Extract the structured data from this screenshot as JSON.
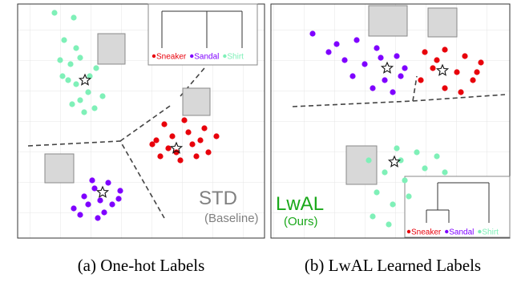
{
  "chart_data": [
    {
      "type": "scatter",
      "caption": "(a) One-hot Labels",
      "annotations": [
        "STD",
        "(Baseline)"
      ],
      "annotation_color": "#808080",
      "xlim": [
        0,
        308
      ],
      "ylim": [
        0,
        292
      ],
      "series": [
        {
          "name": "Sneaker",
          "color": "#e8000b",
          "x": [
            183,
            208,
            233,
            248,
            173,
            193,
            218,
            238,
            178,
            203,
            223,
            188,
            213,
            168,
            228,
            198
          ],
          "values": [
            142,
            147,
            137,
            127,
            122,
            127,
            117,
            107,
            102,
            97,
            102,
            112,
            132,
            117,
            122,
            107
          ],
          "center": [
            198,
            112
          ]
        },
        {
          "name": "Sandal",
          "color": "#7f00ff",
          "x": [
            93,
            113,
            128,
            83,
            103,
            118,
            96,
            78,
            108,
            126,
            88,
            100,
            70
          ],
          "values": [
            72,
            69,
            59,
            52,
            47,
            42,
            62,
            29,
            32,
            49,
            42,
            25,
            37
          ],
          "center": [
            106,
            57
          ]
        },
        {
          "name": "Shirt",
          "color": "#7ff0b8",
          "x": [
            46,
            70,
            58,
            73,
            53,
            66,
            78,
            98,
            90,
            73,
            63,
            88,
            106,
            78,
            96,
            68,
            83,
            56
          ],
          "values": [
            281,
            275,
            247,
            237,
            222,
            217,
            225,
            212,
            202,
            192,
            197,
            182,
            177,
            172,
            162,
            167,
            157,
            202
          ],
          "center": [
            84,
            197
          ]
        }
      ]
    },
    {
      "type": "scatter",
      "caption": "(b) LwAL Learned Labels",
      "annotations": [
        "LwAL",
        "(Ours)"
      ],
      "annotation_color": "#1aa81a",
      "xlim": [
        0,
        298
      ],
      "ylim": [
        0,
        292
      ],
      "series": [
        {
          "name": "Sneaker",
          "color": "#e8000b",
          "x": [
            192,
            217,
            242,
            262,
            202,
            232,
            252,
            187,
            217,
            237,
            207,
            257
          ],
          "values": [
            232,
            235,
            227,
            219,
            212,
            207,
            197,
            197,
            187,
            182,
            222,
            207
          ],
          "center": [
            214,
            209
          ]
        },
        {
          "name": "Sandal",
          "color": "#7f00ff",
          "x": [
            52,
            82,
            107,
            132,
            157,
            92,
            117,
            142,
            162,
            72,
            127,
            152,
            102,
            137,
            167
          ],
          "values": [
            255,
            242,
            247,
            237,
            227,
            222,
            217,
            197,
            202,
            232,
            187,
            182,
            202,
            225,
            212
          ],
          "center": [
            145,
            212
          ]
        },
        {
          "name": "Shirt",
          "color": "#7ff0b8",
          "x": [
            157,
            182,
            207,
            122,
            142,
            167,
            192,
            132,
            152,
            172,
            127,
            147,
            217,
            162
          ],
          "values": [
            112,
            107,
            102,
            97,
            82,
            72,
            87,
            57,
            42,
            52,
            27,
            17,
            82,
            97
          ],
          "center": [
            154,
            95
          ]
        }
      ]
    }
  ]
}
